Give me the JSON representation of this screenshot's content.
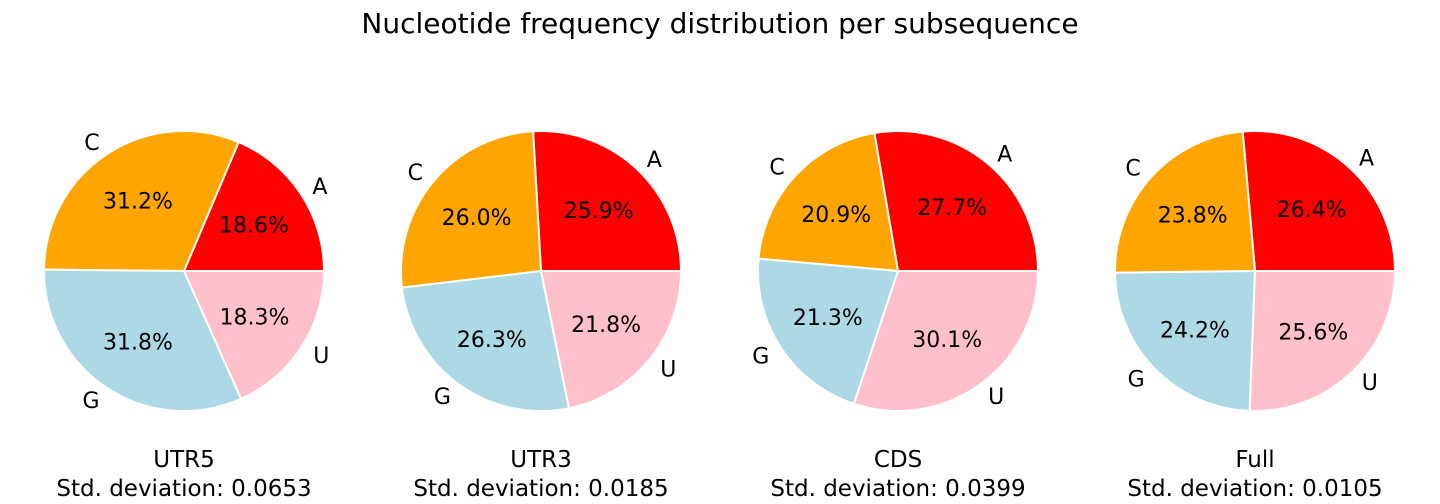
{
  "chart_data": {
    "type": "pie",
    "title": "Nucleotide frequency distribution per subsequence",
    "colors": {
      "A": "#ff0000",
      "C": "#ffa500",
      "G": "#add8e6",
      "U": "#ffc0cb"
    },
    "charts": [
      {
        "name": "UTR5",
        "caption_name": "UTR5",
        "caption_std": "Std. deviation: 0.0653",
        "slices": [
          {
            "label": "A",
            "value": 18.6,
            "display": "18.6%"
          },
          {
            "label": "C",
            "value": 31.2,
            "display": "31.2%"
          },
          {
            "label": "G",
            "value": 31.8,
            "display": "31.8%"
          },
          {
            "label": "U",
            "value": 18.3,
            "display": "18.3%"
          }
        ]
      },
      {
        "name": "UTR3",
        "caption_name": "UTR3",
        "caption_std": "Std. deviation: 0.0185",
        "slices": [
          {
            "label": "A",
            "value": 25.9,
            "display": "25.9%"
          },
          {
            "label": "C",
            "value": 26.0,
            "display": "26.0%"
          },
          {
            "label": "G",
            "value": 26.3,
            "display": "26.3%"
          },
          {
            "label": "U",
            "value": 21.8,
            "display": "21.8%"
          }
        ]
      },
      {
        "name": "CDS",
        "caption_name": "CDS",
        "caption_std": "Std. deviation: 0.0399",
        "slices": [
          {
            "label": "A",
            "value": 27.7,
            "display": "27.7%"
          },
          {
            "label": "C",
            "value": 20.9,
            "display": "20.9%"
          },
          {
            "label": "G",
            "value": 21.3,
            "display": "21.3%"
          },
          {
            "label": "U",
            "value": 30.1,
            "display": "30.1%"
          }
        ]
      },
      {
        "name": "Full",
        "caption_name": "Full",
        "caption_std": "Std. deviation: 0.0105",
        "slices": [
          {
            "label": "A",
            "value": 26.4,
            "display": "26.4%"
          },
          {
            "label": "C",
            "value": 23.8,
            "display": "23.8%"
          },
          {
            "label": "G",
            "value": 24.2,
            "display": "24.2%"
          },
          {
            "label": "U",
            "value": 25.6,
            "display": "25.6%"
          }
        ]
      }
    ]
  }
}
